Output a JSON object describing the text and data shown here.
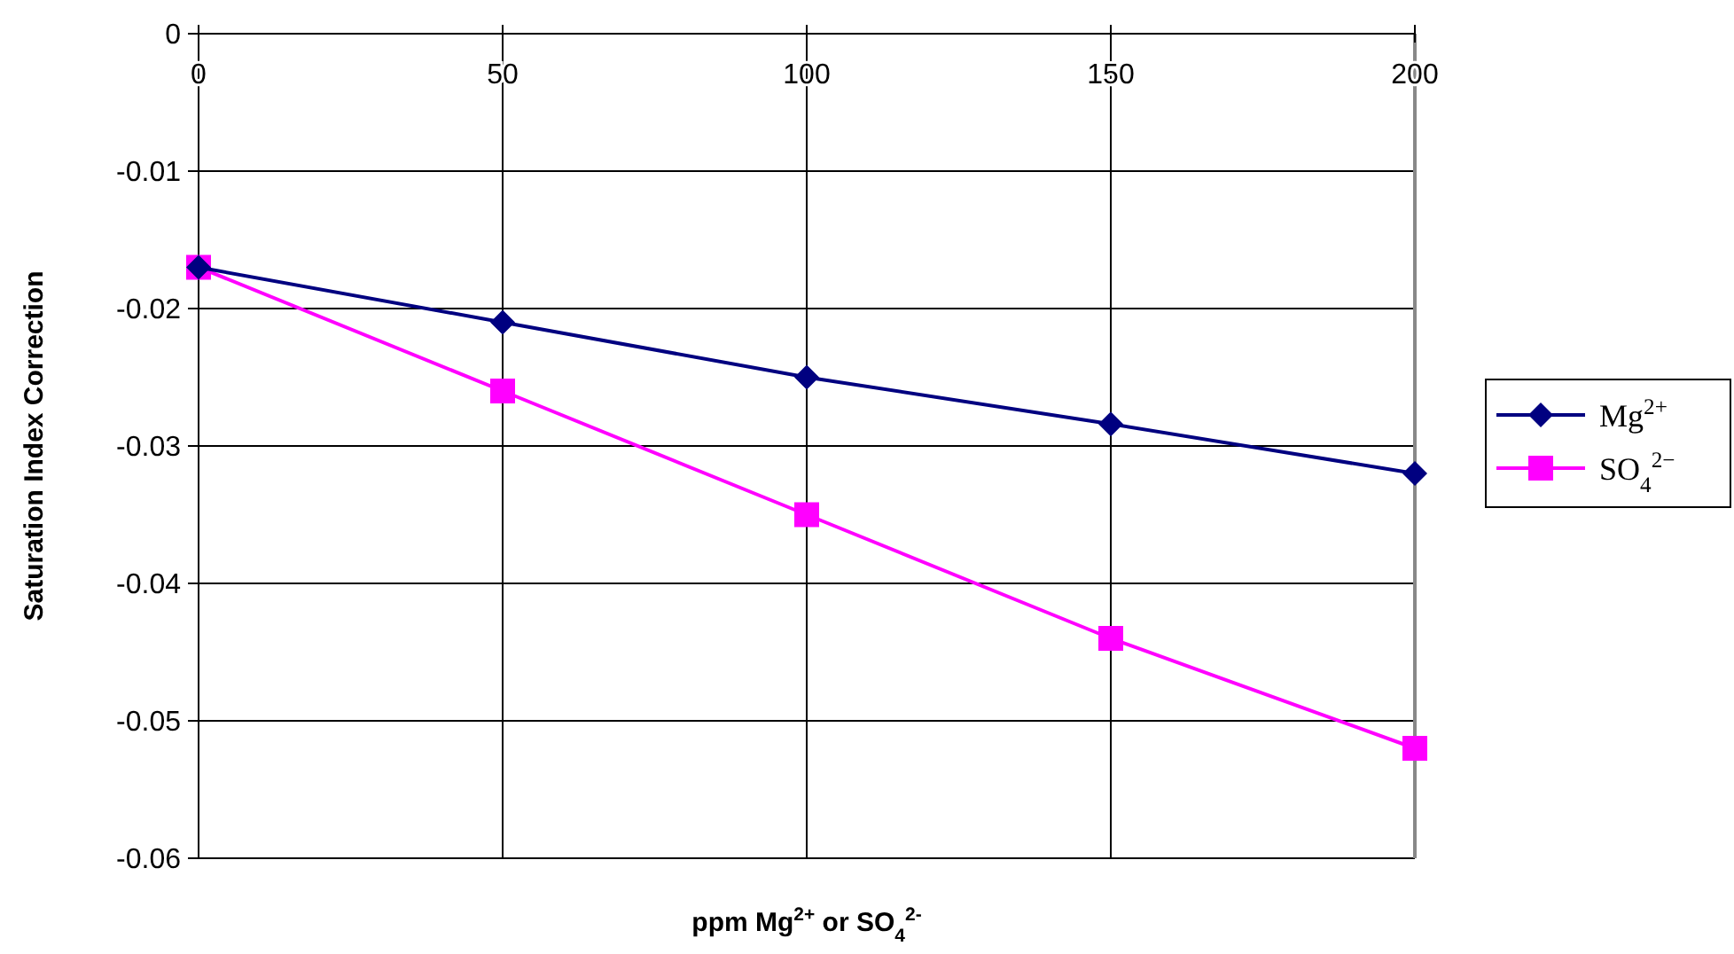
{
  "chart_data": {
    "type": "line",
    "xlabel": "ppm Mg$^{2+}$ or SO$_{4}$$^{2-}$",
    "ylabel": "Saturation Index Correction",
    "x": [
      0,
      50,
      100,
      150,
      200
    ],
    "xlim": [
      0,
      200
    ],
    "xticks": [
      0,
      50,
      100,
      150,
      200
    ],
    "ylim": [
      -0.06,
      0
    ],
    "yticks": [
      0,
      -0.01,
      -0.02,
      -0.03,
      -0.04,
      -0.05,
      -0.06
    ],
    "grid": true,
    "legend": "right",
    "series": [
      {
        "name": "Mg$^{2+}$",
        "color": "#000080",
        "marker": "diamond",
        "values": [
          -0.017,
          -0.021,
          -0.025,
          -0.0284,
          -0.032
        ]
      },
      {
        "name": "SO$_{4}$$^{2−}$",
        "color": "#ff00ff",
        "marker": "square",
        "values": [
          -0.017,
          -0.026,
          -0.035,
          -0.044,
          -0.052
        ]
      }
    ]
  }
}
